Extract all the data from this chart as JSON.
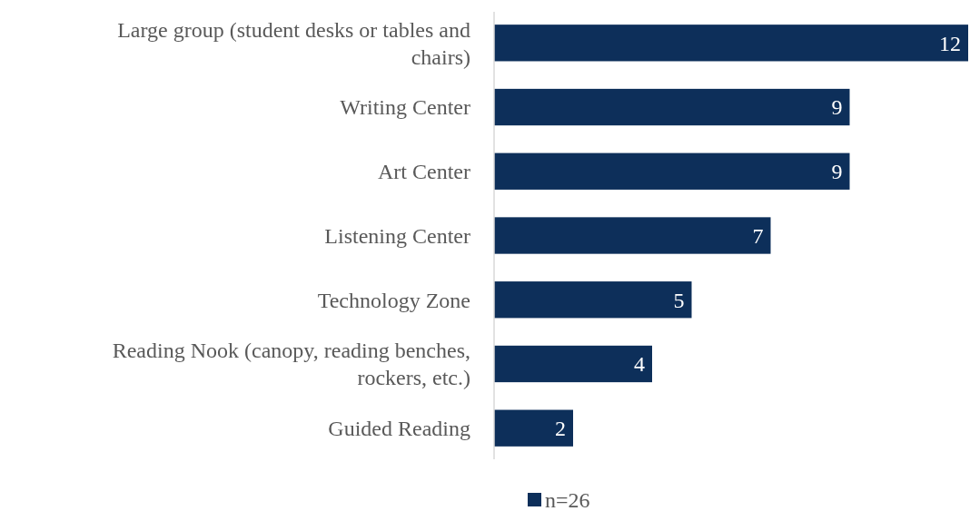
{
  "chart_data": {
    "type": "bar",
    "orientation": "horizontal",
    "categories": [
      "Large group (student desks or tables and chairs)",
      "Writing Center",
      "Art Center",
      "Listening Center",
      "Technology Zone",
      "Reading Nook (canopy, reading benches, rockers, etc.)",
      "Guided Reading"
    ],
    "series": [
      {
        "name": "n=26",
        "color": "#0d2f5a",
        "values": [
          12,
          9,
          9,
          7,
          5,
          4,
          2
        ]
      }
    ],
    "data_labels": true,
    "legend": "bottom"
  }
}
